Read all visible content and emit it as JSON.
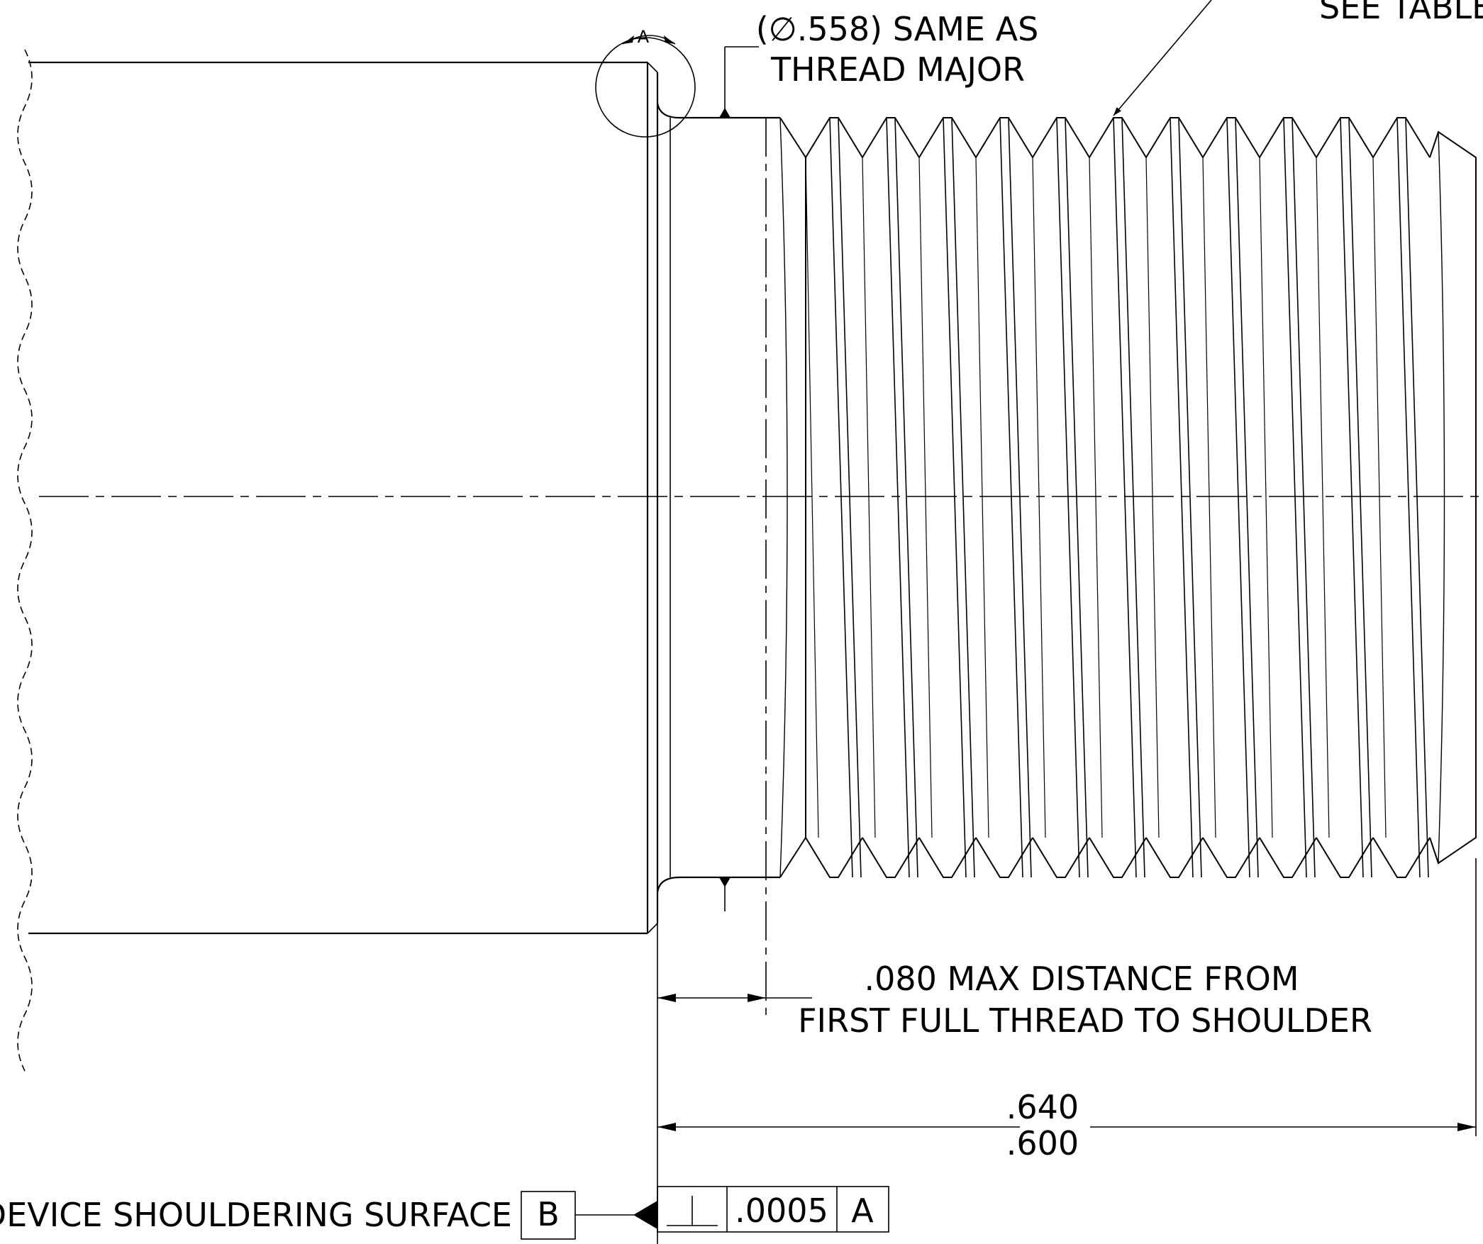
{
  "notes": {
    "see_table": "SEE TABLE",
    "diameter_line1": "(∅.558) SAME AS",
    "diameter_line2": "THREAD MAJOR",
    "distance_line1": ".080 MAX DISTANCE FROM",
    "distance_line2": "FIRST FULL THREAD TO SHOULDER"
  },
  "detail": {
    "label": "A"
  },
  "dimension": {
    "upper": ".640",
    "lower": ".600"
  },
  "datum": {
    "surface_label": "DEVICE SHOULDERING SURFACE",
    "letter": "B"
  },
  "feature_control_frame": {
    "symbol": "perpendicularity",
    "tolerance": ".0005",
    "datum_ref": "A"
  },
  "colors": {
    "line": "#000000",
    "background": "#ffffff"
  }
}
